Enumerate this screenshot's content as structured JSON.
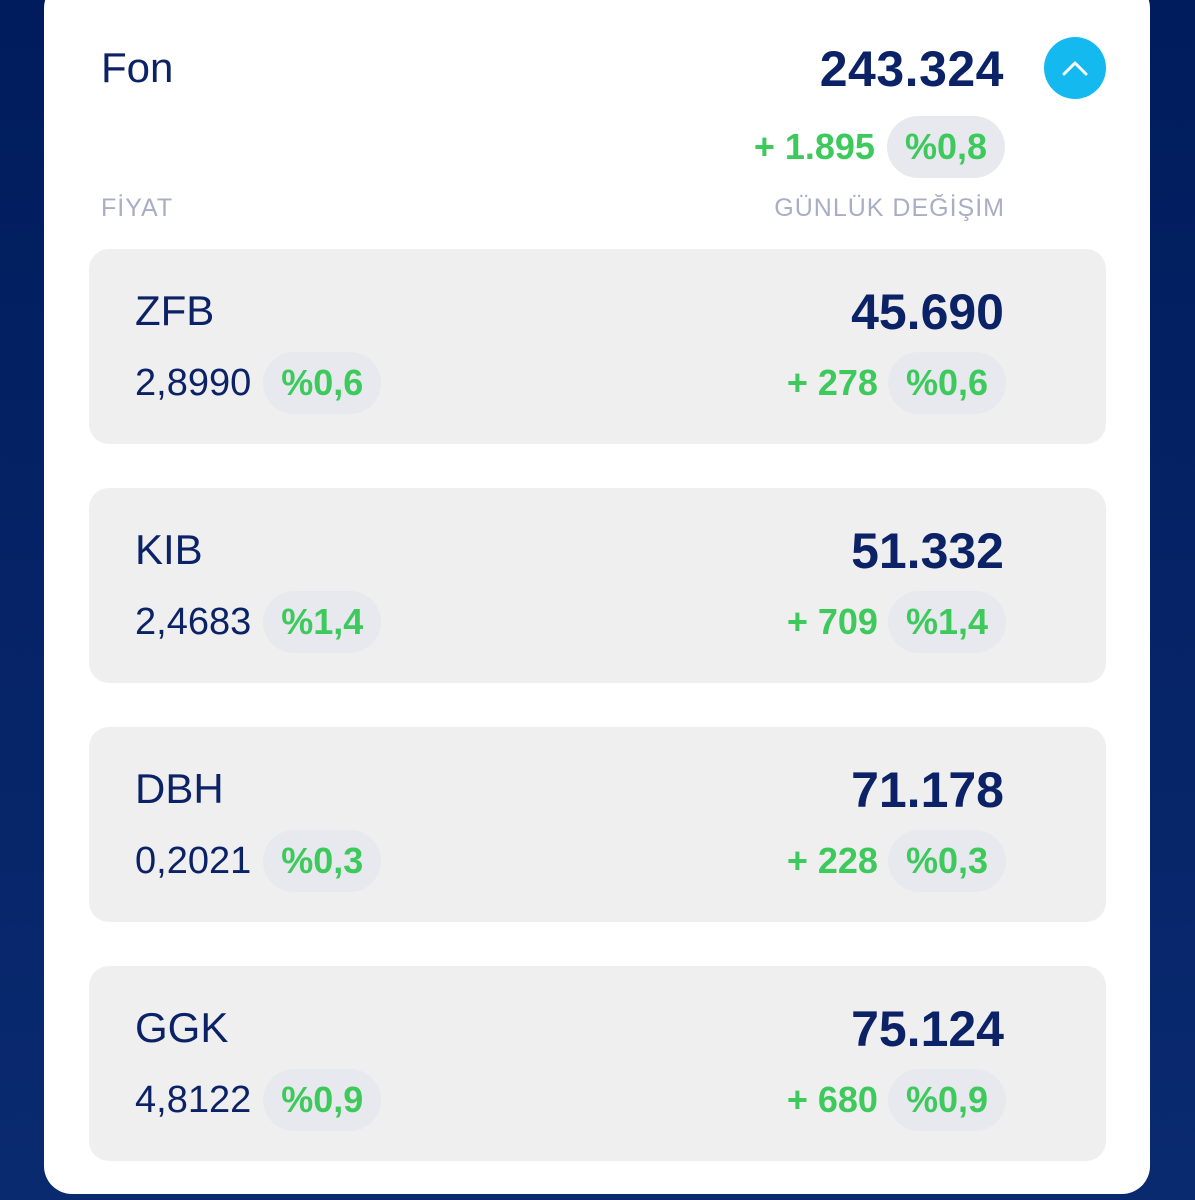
{
  "header": {
    "title": "Fon",
    "total": "243.324",
    "change_amount": "+ 1.895",
    "change_pct": "%0,8",
    "col_price_label": "FİYAT",
    "col_change_label": "GÜNLÜK DEĞİŞİM",
    "collapse_icon": "chevron-up-icon"
  },
  "colors": {
    "navy_text": "#0c2266",
    "positive_green": "#3ec95c",
    "accent_blue": "#14b9f0",
    "background_dark": "#001c5c"
  },
  "funds": [
    {
      "code": "ZFB",
      "amount": "45.690",
      "price": "2,8990",
      "price_pct": "%0,6",
      "change_amount": "+ 278",
      "change_pct": "%0,6"
    },
    {
      "code": "KIB",
      "amount": "51.332",
      "price": "2,4683",
      "price_pct": "%1,4",
      "change_amount": "+ 709",
      "change_pct": "%1,4"
    },
    {
      "code": "DBH",
      "amount": "71.178",
      "price": "0,2021",
      "price_pct": "%0,3",
      "change_amount": "+ 228",
      "change_pct": "%0,3"
    },
    {
      "code": "GGK",
      "amount": "75.124",
      "price": "4,8122",
      "price_pct": "%0,9",
      "change_amount": "+ 680",
      "change_pct": "%0,9"
    }
  ]
}
